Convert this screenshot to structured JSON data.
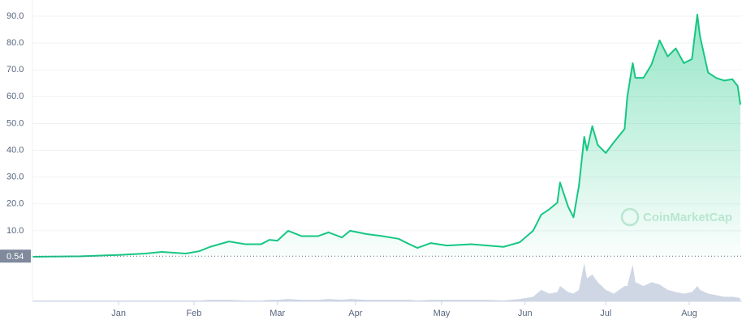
{
  "chart_data": {
    "type": "area-line",
    "watermark": "CoinMarketCap",
    "color": "#16c784",
    "volume_color": "#cfd6e4",
    "x": [
      0,
      18,
      32,
      42,
      48,
      57,
      62,
      66,
      73,
      79,
      85,
      88,
      91,
      95,
      100,
      106,
      110,
      115,
      118,
      124,
      130,
      136,
      140,
      143,
      148,
      154,
      163,
      169,
      175,
      181,
      186,
      189,
      192,
      195,
      196,
      199,
      201,
      203,
      205,
      206,
      208,
      210,
      213,
      216,
      220,
      221,
      223,
      224,
      227,
      230,
      233,
      236,
      239,
      242,
      245,
      247,
      248,
      251,
      254,
      257,
      260,
      262,
      263
    ],
    "values": [
      0.3,
      0.5,
      1,
      1.5,
      2.1,
      1.5,
      2.4,
      4,
      6,
      5,
      5,
      6.6,
      6.3,
      10,
      8,
      8,
      9.4,
      7.5,
      10,
      8.8,
      8,
      7,
      5,
      3.6,
      5.4,
      4.5,
      5,
      4.5,
      4,
      5.7,
      10,
      16,
      18,
      20.5,
      28,
      19,
      15,
      26.6,
      45,
      40,
      49,
      42,
      39,
      43,
      48,
      60,
      72.5,
      67,
      67,
      72,
      81,
      75,
      78,
      72.5,
      74,
      90.6,
      82.5,
      69,
      67,
      66,
      66.5,
      64,
      57
    ],
    "volume": [
      1,
      1,
      1,
      1,
      1,
      1,
      1,
      2,
      2,
      1,
      1,
      2,
      2,
      3,
      2,
      2,
      3,
      2,
      3,
      2,
      2,
      2,
      2,
      1,
      2,
      2,
      2,
      2,
      1,
      3,
      6,
      15,
      10,
      12,
      20,
      12,
      10,
      15,
      50,
      30,
      35,
      25,
      15,
      10,
      20,
      20,
      48,
      25,
      20,
      25,
      22,
      15,
      12,
      10,
      12,
      20,
      15,
      10,
      8,
      6,
      6,
      5,
      4
    ],
    "volume_lim": [
      0,
      55
    ],
    "xlim": [
      0,
      263
    ],
    "xticks": [
      {
        "value": 32,
        "label": "Jan"
      },
      {
        "value": 60,
        "label": "Feb"
      },
      {
        "value": 91,
        "label": "Mar"
      },
      {
        "value": 120,
        "label": "Apr"
      },
      {
        "value": 152,
        "label": "May"
      },
      {
        "value": 183,
        "label": "Jun"
      },
      {
        "value": 213,
        "label": "Jul"
      },
      {
        "value": 244,
        "label": "Aug"
      }
    ],
    "ylim": [
      0,
      90
    ],
    "yticks": [
      {
        "value": 10,
        "label": "10.0"
      },
      {
        "value": 20,
        "label": "20.0"
      },
      {
        "value": 30,
        "label": "30.0"
      },
      {
        "value": 40,
        "label": "40.0"
      },
      {
        "value": 50,
        "label": "50.0"
      },
      {
        "value": 60,
        "label": "60.0"
      },
      {
        "value": 70,
        "label": "70.0"
      },
      {
        "value": 80,
        "label": "80.0"
      },
      {
        "value": 90,
        "label": "90.0"
      }
    ],
    "reference_value": 0.54,
    "grid": true
  }
}
